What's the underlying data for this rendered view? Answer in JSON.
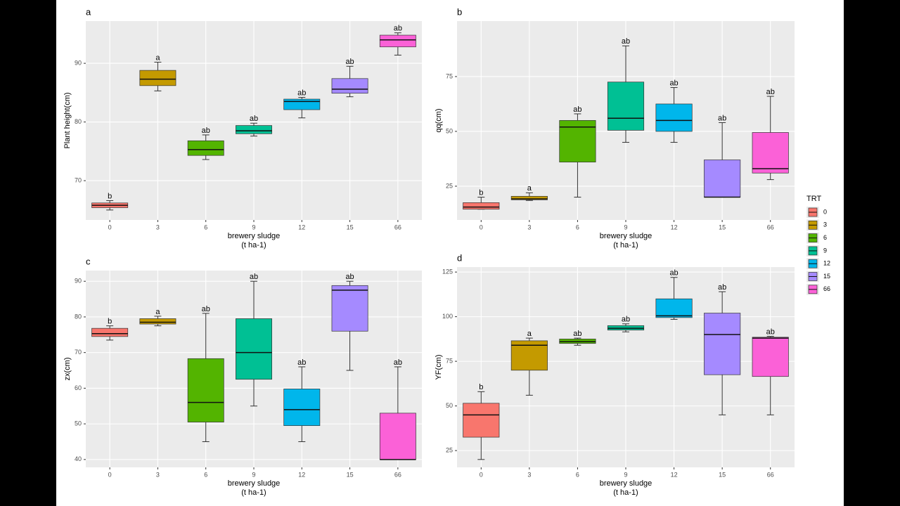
{
  "chart_data": [
    {
      "type": "box",
      "tag": "a",
      "xlabel": [
        "brewery sludge",
        "(t ha-1)"
      ],
      "ylabel": "Plant height(cm)",
      "categories": [
        "0",
        "3",
        "6",
        "9",
        "12",
        "15",
        "66"
      ],
      "colors": [
        "#F8766D",
        "#C49A00",
        "#53B400",
        "#00C094",
        "#00B6EB",
        "#A58AFF",
        "#FB61D7"
      ],
      "min": [
        65,
        85.3,
        73.6,
        77.6,
        80.7,
        84.3,
        91.4
      ],
      "q1": [
        65.4,
        86.2,
        74.3,
        78,
        82.1,
        84.9,
        92.8
      ],
      "median": [
        65.8,
        87.3,
        75.3,
        78.5,
        83.5,
        85.6,
        94
      ],
      "q3": [
        66.2,
        88.8,
        76.8,
        79.4,
        83.9,
        87.4,
        94.8
      ],
      "max": [
        66.6,
        90.2,
        77.8,
        79.8,
        84.2,
        89.5,
        95.2
      ],
      "letters": [
        "b",
        "a",
        "ab",
        "ab",
        "ab",
        "ab",
        "ab"
      ],
      "ylim": [
        63.3,
        97.2
      ],
      "yticks": [
        70,
        80,
        90
      ],
      "grid": true
    },
    {
      "type": "box",
      "tag": "b",
      "xlabel": [
        "brewery sludge",
        "(t ha-1)"
      ],
      "ylabel": "qq(cm)",
      "categories": [
        "0",
        "3",
        "6",
        "9",
        "12",
        "15",
        "66"
      ],
      "colors": [
        "#F8766D",
        "#C49A00",
        "#53B400",
        "#00C094",
        "#00B6EB",
        "#A58AFF",
        "#FB61D7"
      ],
      "min": [
        14.5,
        18.5,
        20,
        45,
        45,
        20,
        28
      ],
      "q1": [
        14.5,
        18.8,
        36,
        50.5,
        50,
        20,
        31
      ],
      "median": [
        15.5,
        19.2,
        52,
        56,
        55,
        20,
        33
      ],
      "q3": [
        17.5,
        20.4,
        55,
        72.5,
        62.5,
        37,
        49.5
      ],
      "max": [
        20,
        22,
        58,
        89,
        70,
        54,
        66
      ],
      "letters": [
        "b",
        "a",
        "ab",
        "ab",
        "ab",
        "ab",
        "ab"
      ],
      "ylim": [
        9.6,
        100.3
      ],
      "yticks": [
        25,
        50,
        75
      ],
      "grid": true
    },
    {
      "type": "box",
      "tag": "c",
      "xlabel": [
        "brewery sludge",
        "(t ha-1)"
      ],
      "ylabel": "zx(cm)",
      "categories": [
        "0",
        "3",
        "6",
        "9",
        "12",
        "15",
        "66"
      ],
      "colors": [
        "#F8766D",
        "#C49A00",
        "#53B400",
        "#00C094",
        "#00B6EB",
        "#A58AFF",
        "#FB61D7"
      ],
      "min": [
        73.5,
        77.5,
        45,
        55,
        45,
        65,
        40
      ],
      "q1": [
        74.5,
        78,
        50.5,
        62.5,
        49.5,
        76,
        40
      ],
      "median": [
        75.3,
        78.5,
        56,
        70,
        54,
        87.5,
        40
      ],
      "q3": [
        76.8,
        79.5,
        68.3,
        79.5,
        59.8,
        88.8,
        53
      ],
      "max": [
        77.5,
        80.2,
        81,
        90,
        66,
        90,
        66
      ],
      "letters": [
        "b",
        "a",
        "ab",
        "ab",
        "ab",
        "ab",
        "ab"
      ],
      "ylim": [
        37.8,
        93
      ],
      "yticks": [
        40,
        50,
        60,
        70,
        80,
        90
      ],
      "grid": true
    },
    {
      "type": "box",
      "tag": "d",
      "xlabel": [
        "brewery sludge",
        "(t ha-1)"
      ],
      "ylabel": "YF(cm)",
      "categories": [
        "0",
        "3",
        "6",
        "9",
        "12",
        "15",
        "66"
      ],
      "colors": [
        "#F8766D",
        "#C49A00",
        "#53B400",
        "#00C094",
        "#00B6EB",
        "#A58AFF",
        "#FB61D7"
      ],
      "min": [
        20,
        56,
        84,
        91.5,
        98.5,
        45,
        45
      ],
      "q1": [
        32.5,
        70,
        85,
        92.5,
        99.5,
        67.5,
        66.5
      ],
      "median": [
        45,
        84,
        86,
        93.5,
        100.5,
        90,
        88
      ],
      "q3": [
        51.5,
        86.5,
        87.5,
        95,
        110,
        102,
        88.5
      ],
      "max": [
        58,
        88,
        88,
        96,
        122,
        114,
        89
      ],
      "letters": [
        "b",
        "a",
        "ab",
        "ab",
        "ab",
        "ab",
        "ab"
      ],
      "ylim": [
        15.6,
        127.8
      ],
      "yticks": [
        25,
        50,
        75,
        100,
        125
      ],
      "grid": true
    }
  ],
  "legend": {
    "title": "TRT",
    "position": "right",
    "labels": [
      "0",
      "3",
      "6",
      "9",
      "12",
      "15",
      "66"
    ],
    "colors": [
      "#F8766D",
      "#C49A00",
      "#53B400",
      "#00C094",
      "#00B6EB",
      "#A58AFF",
      "#FB61D7"
    ]
  }
}
